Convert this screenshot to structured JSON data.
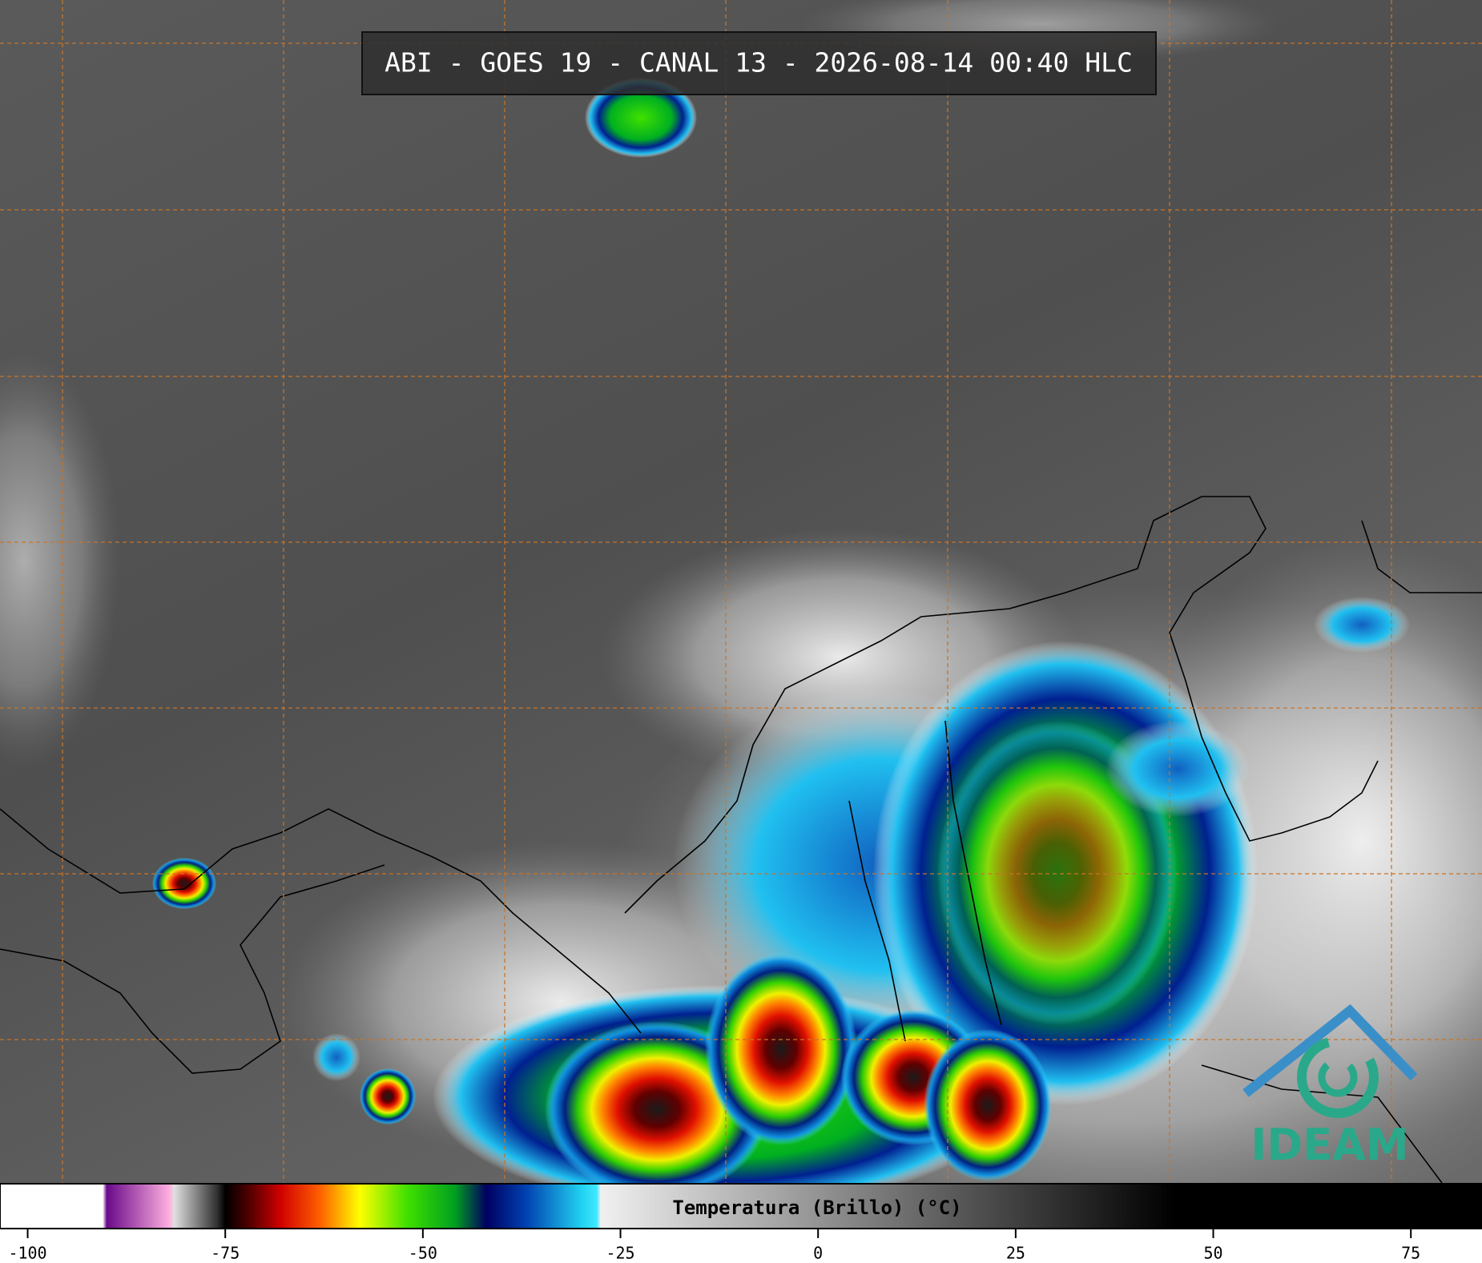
{
  "title": "ABI - GOES 19 - CANAL 13 - 2026-08-14 00:40 HLC",
  "logo": "IDEAM",
  "colorbar": {
    "label": "Temperatura (Brillo) (°C)",
    "xlim": [
      -103.5,
      84
    ],
    "ticks": [
      -100,
      -75,
      -50,
      -25,
      0,
      25,
      50,
      75
    ],
    "colormap": [
      {
        "value": -103.5,
        "color": "#ffffff"
      },
      {
        "value": -90.5,
        "color": "#ffffff"
      },
      {
        "value": -90,
        "color": "#6a0a8a"
      },
      {
        "value": -82,
        "color": "#ffb0e0"
      },
      {
        "value": -81.5,
        "color": "#e0e0e0"
      },
      {
        "value": -76,
        "color": "#303030"
      },
      {
        "value": -75,
        "color": "#000000"
      },
      {
        "value": -72,
        "color": "#500000"
      },
      {
        "value": -68,
        "color": "#d00000"
      },
      {
        "value": -63,
        "color": "#ff6000"
      },
      {
        "value": -58,
        "color": "#ffff00"
      },
      {
        "value": -52,
        "color": "#40e000"
      },
      {
        "value": -46,
        "color": "#00a020"
      },
      {
        "value": -42,
        "color": "#000060"
      },
      {
        "value": -37,
        "color": "#0040b0"
      },
      {
        "value": -30,
        "color": "#20d0f0"
      },
      {
        "value": -28,
        "color": "#40e8ff"
      },
      {
        "value": -27.5,
        "color": "#f0f0f0"
      },
      {
        "value": 20,
        "color": "#505050"
      },
      {
        "value": 45,
        "color": "#000000"
      },
      {
        "value": 84,
        "color": "#000000"
      }
    ]
  }
}
